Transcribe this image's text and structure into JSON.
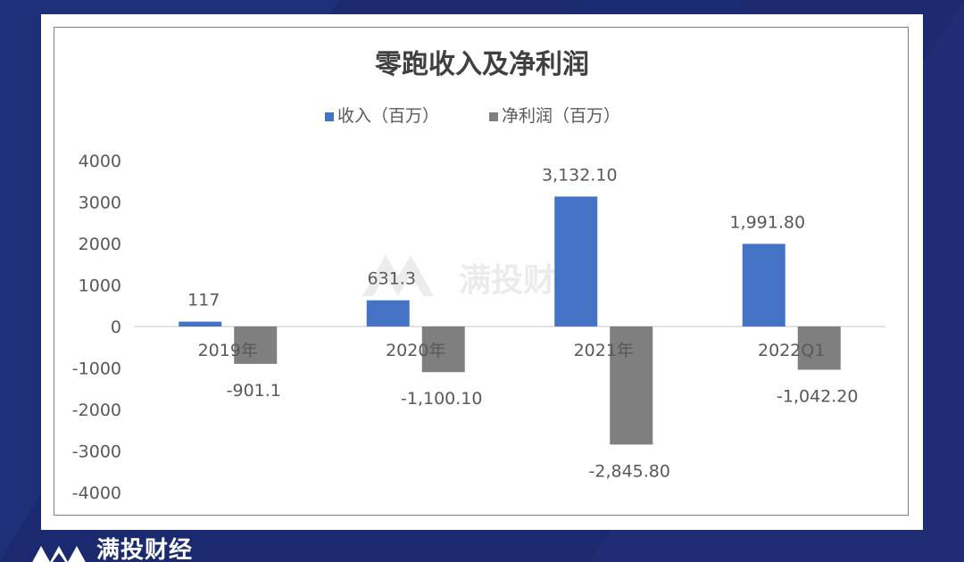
{
  "brand": {
    "name": "满投财经",
    "watermark": "满投财经"
  },
  "colors": {
    "revenue": "#4472c4",
    "net_profit": "#7f7f7f",
    "text": "#595959",
    "title": "#404040"
  },
  "chart_data": {
    "type": "bar",
    "title": "零跑收入及净利润",
    "categories": [
      "2019年",
      "2020年",
      "2021年",
      "2022Q1"
    ],
    "series": [
      {
        "name": "收入（百万）",
        "values": [
          117,
          631.3,
          3132.1,
          1991.8
        ],
        "labels": [
          "117",
          "631.3",
          "3,132.10",
          "1,991.80"
        ]
      },
      {
        "name": "净利润（百万）",
        "values": [
          -901.1,
          -1100.1,
          -2845.8,
          -1042.2
        ],
        "labels": [
          "-901.1",
          "-1,100.10",
          "-2,845.80",
          "-1,042.20"
        ]
      }
    ],
    "ylim": [
      -4000,
      4000
    ],
    "yticks": [
      "4000",
      "3000",
      "2000",
      "1000",
      "0",
      "-1000",
      "-2000",
      "-3000",
      "-4000"
    ],
    "legend": "top",
    "grid": false
  }
}
